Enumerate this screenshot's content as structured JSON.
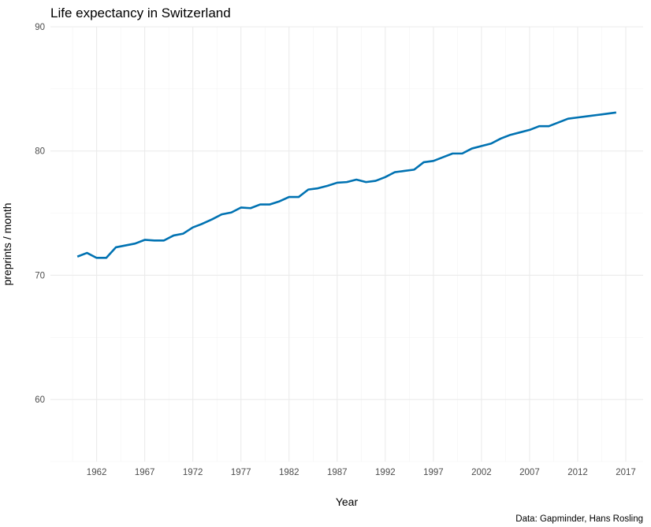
{
  "chart_data": {
    "type": "line",
    "title": "Life expectancy in Switzerland",
    "xlabel": "Year",
    "ylabel": "preprints / month",
    "caption": "Data: Gapminder, Hans Rosling",
    "xlim": [
      1960,
      2016
    ],
    "ylim": [
      55,
      90
    ],
    "x_ticks": [
      1962,
      1967,
      1972,
      1977,
      1982,
      1987,
      1992,
      1997,
      2002,
      2007,
      2012,
      2017
    ],
    "y_ticks": [
      60,
      70,
      80,
      90
    ],
    "grid": true,
    "legend": "none",
    "color": "#0072b2",
    "series": [
      {
        "x": [
          1960,
          1961,
          1962,
          1963,
          1964,
          1965,
          1966,
          1967,
          1968,
          1969,
          1970,
          1971,
          1972,
          1973,
          1974,
          1975,
          1976,
          1977,
          1978,
          1979,
          1980,
          1981,
          1982,
          1983,
          1984,
          1985,
          1986,
          1987,
          1988,
          1989,
          1990,
          1991,
          1992,
          1993,
          1994,
          1995,
          1996,
          1997,
          1998,
          1999,
          2000,
          2001,
          2002,
          2003,
          2004,
          2005,
          2006,
          2007,
          2008,
          2009,
          2010,
          2011,
          2012,
          2013,
          2014,
          2015,
          2016
        ],
        "values": [
          71.5,
          71.8,
          71.4,
          71.4,
          72.25,
          72.4,
          72.55,
          72.85,
          72.8,
          72.8,
          73.2,
          73.35,
          73.85,
          74.15,
          74.5,
          74.9,
          75.05,
          75.45,
          75.4,
          75.7,
          75.7,
          75.95,
          76.3,
          76.3,
          76.9,
          77.0,
          77.2,
          77.45,
          77.5,
          77.7,
          77.5,
          77.6,
          77.9,
          78.3,
          78.4,
          78.5,
          79.1,
          79.2,
          79.5,
          79.8,
          79.8,
          80.2,
          80.4,
          80.6,
          81.0,
          81.3,
          81.5,
          81.7,
          82.0,
          82.0,
          82.3,
          82.6,
          82.7,
          82.8,
          82.9,
          83.0,
          83.1
        ]
      }
    ]
  }
}
